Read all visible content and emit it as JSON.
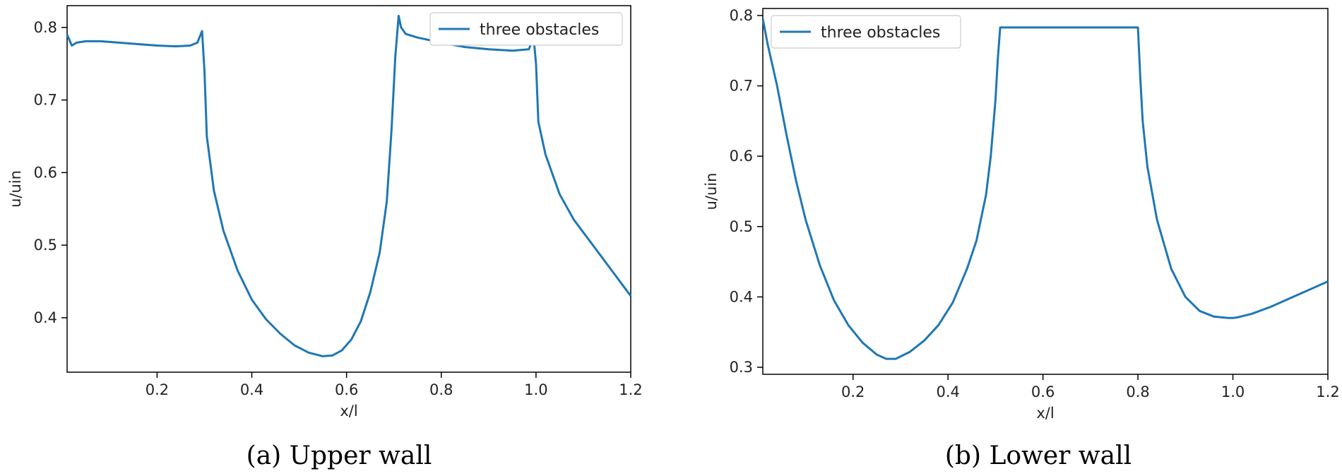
{
  "chart_data": [
    {
      "type": "line",
      "caption": "(a) Upper wall",
      "xlabel": "x/l",
      "ylabel": "u/uin",
      "xlim": [
        0.01,
        1.2
      ],
      "ylim": [
        0.325,
        0.83
      ],
      "xticks": [
        0.2,
        0.4,
        0.6,
        0.8,
        1.0,
        1.2
      ],
      "xtick_labels": [
        "0.2",
        "0.4",
        "0.6",
        "0.8",
        "1.0",
        "1.2"
      ],
      "yticks": [
        0.4,
        0.5,
        0.6,
        0.7,
        0.8
      ],
      "ytick_labels": [
        "0.4",
        "0.5",
        "0.6",
        "0.7",
        "0.8"
      ],
      "legend_position": "top-right",
      "series": [
        {
          "name": "three obstacles",
          "color": "#1f77b4",
          "x": [
            0.01,
            0.02,
            0.03,
            0.05,
            0.08,
            0.12,
            0.16,
            0.2,
            0.24,
            0.27,
            0.285,
            0.295,
            0.3,
            0.305,
            0.32,
            0.34,
            0.37,
            0.4,
            0.43,
            0.46,
            0.49,
            0.52,
            0.55,
            0.57,
            0.59,
            0.61,
            0.63,
            0.65,
            0.67,
            0.685,
            0.695,
            0.703,
            0.71,
            0.715,
            0.725,
            0.75,
            0.8,
            0.85,
            0.9,
            0.95,
            0.985,
            0.995,
            1.0,
            1.005,
            1.02,
            1.05,
            1.08,
            1.12,
            1.16,
            1.2
          ],
          "y": [
            0.79,
            0.775,
            0.779,
            0.781,
            0.781,
            0.779,
            0.777,
            0.775,
            0.774,
            0.775,
            0.779,
            0.795,
            0.74,
            0.65,
            0.575,
            0.52,
            0.465,
            0.425,
            0.398,
            0.378,
            0.362,
            0.352,
            0.347,
            0.348,
            0.355,
            0.37,
            0.395,
            0.435,
            0.49,
            0.56,
            0.66,
            0.76,
            0.816,
            0.8,
            0.791,
            0.786,
            0.779,
            0.773,
            0.77,
            0.768,
            0.77,
            0.786,
            0.75,
            0.67,
            0.625,
            0.57,
            0.535,
            0.5,
            0.465,
            0.43
          ]
        }
      ]
    },
    {
      "type": "line",
      "caption": "(b) Lower wall",
      "xlabel": "x/l",
      "ylabel": "u/uin",
      "xlim": [
        0.01,
        1.2
      ],
      "ylim": [
        0.29,
        0.81
      ],
      "xticks": [
        0.2,
        0.4,
        0.6,
        0.8,
        1.0,
        1.2
      ],
      "xtick_labels": [
        "0.2",
        "0.4",
        "0.6",
        "0.8",
        "1.0",
        "1.2"
      ],
      "yticks": [
        0.3,
        0.4,
        0.5,
        0.6,
        0.7,
        0.8
      ],
      "ytick_labels": [
        "0.3",
        "0.4",
        "0.5",
        "0.6",
        "0.7",
        "0.8"
      ],
      "legend_position": "top-left",
      "series": [
        {
          "name": "three obstacles",
          "color": "#1f77b4",
          "x": [
            0.01,
            0.02,
            0.04,
            0.06,
            0.08,
            0.1,
            0.13,
            0.16,
            0.19,
            0.22,
            0.25,
            0.27,
            0.29,
            0.32,
            0.35,
            0.38,
            0.41,
            0.44,
            0.46,
            0.48,
            0.49,
            0.5,
            0.505,
            0.51,
            0.6,
            0.7,
            0.8,
            0.805,
            0.81,
            0.82,
            0.84,
            0.87,
            0.9,
            0.93,
            0.96,
            0.99,
            1.0,
            1.01,
            1.04,
            1.08,
            1.12,
            1.16,
            1.2
          ],
          "y": [
            0.795,
            0.76,
            0.7,
            0.63,
            0.565,
            0.51,
            0.445,
            0.395,
            0.36,
            0.335,
            0.318,
            0.312,
            0.312,
            0.322,
            0.338,
            0.36,
            0.392,
            0.44,
            0.48,
            0.545,
            0.6,
            0.68,
            0.74,
            0.783,
            0.783,
            0.783,
            0.783,
            0.71,
            0.65,
            0.585,
            0.51,
            0.44,
            0.4,
            0.38,
            0.372,
            0.37,
            0.37,
            0.371,
            0.376,
            0.386,
            0.398,
            0.41,
            0.422
          ]
        }
      ]
    }
  ]
}
